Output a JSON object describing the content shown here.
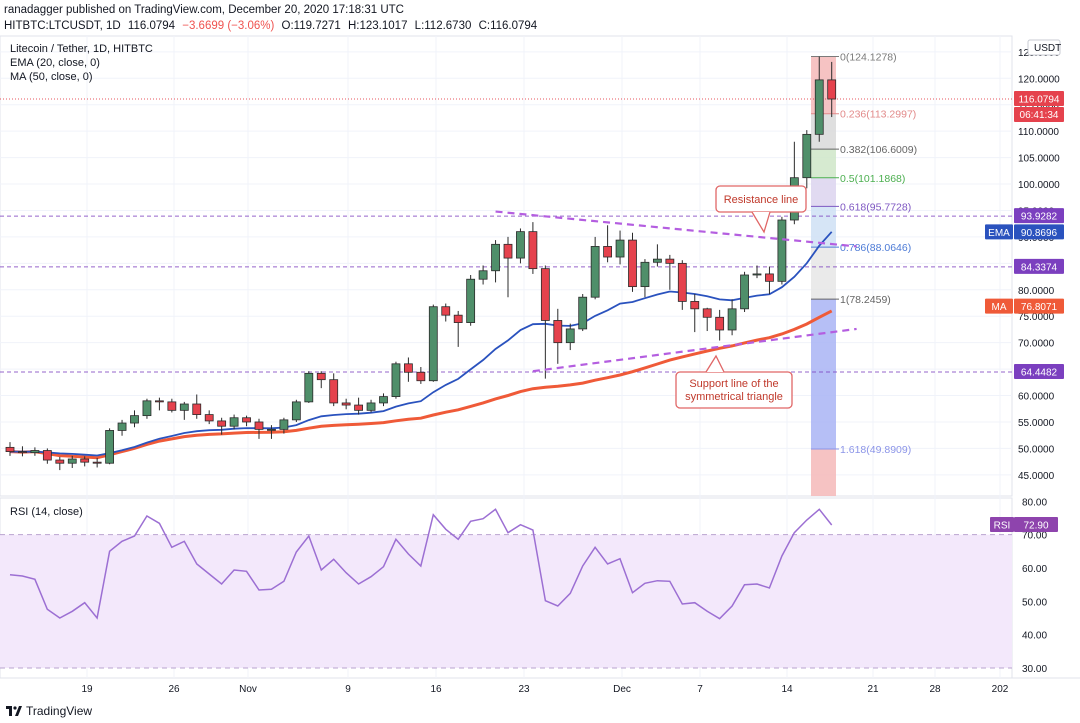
{
  "header": {
    "publisher": "ranadagger published on TradingView.com, December 20, 2020 17:18:31 UTC",
    "symbol": "HITBTC:LTCUSDT, 1D",
    "last": "116.0794",
    "change": "−3.6699 (−3.06%)",
    "open": "O:119.7271",
    "high": "H:123.1017",
    "low": "L:112.6730",
    "close": "C:116.0794"
  },
  "legend": {
    "title": "Litecoin / Tether, 1D, HITBTC",
    "ema": "EMA (20, close, 0)",
    "ma": "MA (50, close, 0)",
    "rsi": "RSI (14, close)"
  },
  "footer": {
    "brand": "TradingView"
  },
  "colors": {
    "up": "#4f8f6a",
    "down": "#e5424d",
    "ema": "#2a52be",
    "ma": "#ef5a38",
    "rsi": "#9c6fd3",
    "trend": "#b45ee0",
    "fib_high": "#f4b8b8",
    "fib_low": "#7b8ff0"
  },
  "chart_data": [
    {
      "type": "candlestick",
      "title": "Litecoin / Tether, 1D, HITBTC",
      "ylabel": "USDT",
      "ylim": [
        41,
        128
      ],
      "yticks": [
        "45.0000",
        "50.0000",
        "55.0000",
        "60.0000",
        "65.0000",
        "70.0000",
        "75.0000",
        "80.0000",
        "85.0000",
        "90.0000",
        "95.0000",
        "100.0000",
        "105.0000",
        "110.0000",
        "115.0000",
        "120.0000",
        "125.0000"
      ],
      "xticks": [
        "19",
        "26",
        "Nov",
        "9",
        "16",
        "23",
        "Dec",
        "7",
        "14",
        "21",
        "28",
        "202"
      ],
      "candles": [
        [
          50.2,
          49.4,
          51.2,
          48.6
        ],
        [
          49.4,
          49.2,
          50.4,
          48.5
        ],
        [
          49.2,
          49.6,
          50.2,
          48.6
        ],
        [
          49.6,
          47.8,
          50.0,
          47.1
        ],
        [
          47.8,
          47.2,
          48.4,
          45.9
        ],
        [
          47.2,
          48.0,
          48.6,
          46.3
        ],
        [
          48.0,
          47.4,
          48.5,
          46.6
        ],
        [
          47.4,
          47.2,
          48.2,
          46.4
        ],
        [
          47.2,
          53.4,
          53.8,
          47.0
        ],
        [
          53.4,
          54.8,
          55.4,
          52.4
        ],
        [
          54.8,
          56.2,
          57.2,
          54.0
        ],
        [
          56.2,
          59.0,
          59.4,
          55.6
        ],
        [
          59.0,
          58.8,
          59.6,
          57.2
        ],
        [
          58.8,
          57.2,
          59.4,
          56.8
        ],
        [
          57.2,
          58.4,
          58.8,
          55.4
        ],
        [
          58.4,
          56.4,
          60.2,
          55.6
        ],
        [
          56.4,
          55.2,
          57.2,
          54.6
        ],
        [
          55.2,
          54.2,
          55.8,
          52.6
        ],
        [
          54.2,
          55.8,
          56.4,
          53.6
        ],
        [
          55.8,
          55.0,
          56.2,
          54.2
        ],
        [
          55.0,
          53.6,
          55.6,
          51.8
        ],
        [
          53.6,
          53.6,
          54.4,
          51.8
        ],
        [
          53.6,
          55.4,
          55.8,
          52.8
        ],
        [
          55.4,
          58.8,
          59.2,
          55.0
        ],
        [
          58.8,
          64.2,
          64.6,
          58.6
        ],
        [
          64.2,
          63.0,
          64.6,
          61.4
        ],
        [
          63.0,
          58.6,
          64.2,
          58.0
        ],
        [
          58.6,
          58.2,
          59.4,
          57.4
        ],
        [
          58.2,
          57.2,
          59.6,
          56.4
        ],
        [
          57.2,
          58.6,
          59.2,
          56.8
        ],
        [
          58.6,
          59.8,
          60.4,
          58.0
        ],
        [
          59.8,
          66.0,
          66.4,
          59.4
        ],
        [
          66.0,
          64.4,
          67.2,
          62.6
        ],
        [
          64.4,
          62.8,
          65.4,
          62.2
        ],
        [
          62.8,
          76.8,
          77.2,
          62.6
        ],
        [
          76.8,
          75.2,
          77.4,
          74.0
        ],
        [
          75.2,
          73.8,
          76.0,
          69.2
        ],
        [
          73.8,
          82.0,
          82.8,
          73.2
        ],
        [
          82.0,
          83.6,
          84.6,
          81.0
        ],
        [
          83.6,
          88.6,
          89.4,
          81.4
        ],
        [
          88.6,
          86.0,
          90.0,
          78.6
        ],
        [
          86.0,
          91.0,
          91.6,
          85.0
        ],
        [
          91.0,
          84.0,
          92.8,
          83.0
        ],
        [
          84.0,
          74.2,
          84.6,
          63.2
        ],
        [
          74.2,
          70.0,
          76.4,
          66.0
        ],
        [
          70.0,
          72.6,
          73.6,
          68.6
        ],
        [
          72.6,
          78.6,
          79.2,
          72.2
        ],
        [
          78.6,
          88.2,
          90.0,
          78.2
        ],
        [
          88.2,
          86.2,
          92.2,
          85.2
        ],
        [
          86.2,
          89.4,
          91.2,
          84.8
        ],
        [
          89.4,
          80.6,
          90.8,
          79.6
        ],
        [
          80.6,
          85.2,
          85.8,
          78.6
        ],
        [
          85.2,
          85.8,
          88.6,
          84.4
        ],
        [
          85.8,
          85.0,
          86.6,
          80.0
        ],
        [
          85.0,
          77.8,
          85.6,
          76.2
        ],
        [
          77.8,
          76.4,
          79.2,
          72.0
        ],
        [
          76.4,
          74.8,
          76.6,
          72.2
        ],
        [
          74.8,
          72.4,
          76.2,
          70.4
        ],
        [
          72.4,
          76.4,
          78.2,
          71.4
        ],
        [
          76.4,
          82.8,
          83.4,
          75.8
        ],
        [
          82.8,
          83.0,
          84.6,
          82.2
        ],
        [
          83.0,
          81.6,
          84.4,
          79.2
        ],
        [
          81.6,
          93.2,
          93.8,
          81.0
        ],
        [
          93.2,
          101.2,
          108.0,
          92.4
        ],
        [
          101.2,
          109.4,
          110.2,
          99.2
        ],
        [
          109.4,
          119.7,
          124.1,
          108.0
        ],
        [
          119.7,
          116.08,
          123.1,
          112.67
        ]
      ],
      "overlays": {
        "ema_label": "EMA",
        "ema_value": "90.8696",
        "ma_label": "MA",
        "ma_value": "76.8071"
      },
      "price_labels": [
        {
          "value": "116.0794",
          "sub": "06:41:34",
          "price": 116.0794
        },
        {
          "value": "93.9282",
          "price": 93.9282
        },
        {
          "value": "84.3374",
          "price": 84.3374
        },
        {
          "value": "64.4482",
          "price": 64.4482
        }
      ],
      "fibonacci": [
        {
          "label": "0(124.1278)",
          "price": 124.1278
        },
        {
          "label": "0.236(113.2997)",
          "price": 113.2997
        },
        {
          "label": "0.382(106.6009)",
          "price": 106.6009
        },
        {
          "label": "0.5(101.1868)",
          "price": 101.1868
        },
        {
          "label": "0.618(95.7728)",
          "price": 95.7728
        },
        {
          "label": "0.786(88.0646)",
          "price": 88.0646
        },
        {
          "label": "1(78.2459)",
          "price": 78.2459
        },
        {
          "label": "1.618(49.8909)",
          "price": 49.8909
        }
      ],
      "annotations": [
        {
          "text": "Resistance line"
        },
        {
          "text": "Support line of the",
          "text2": "symmetrical triangle"
        }
      ]
    },
    {
      "type": "line",
      "title": "RSI (14, close)",
      "ylim": [
        27,
        81
      ],
      "yticks": [
        "30.00",
        "40.00",
        "50.00",
        "60.00",
        "70.00",
        "80.00"
      ],
      "band": [
        30,
        70
      ],
      "last_label": "RSI",
      "last_value": "72.90",
      "values": [
        58.0,
        57.6,
        56.6,
        47.6,
        45.0,
        47.0,
        49.6,
        45.0,
        65.0,
        68.0,
        69.6,
        75.6,
        73.4,
        66.2,
        68.0,
        61.2,
        58.2,
        55.2,
        59.4,
        59.0,
        53.4,
        53.6,
        56.0,
        64.8,
        69.6,
        59.4,
        62.6,
        58.6,
        55.2,
        57.4,
        60.4,
        68.6,
        64.2,
        60.6,
        76.0,
        71.6,
        68.6,
        74.0,
        74.8,
        77.6,
        70.6,
        73.0,
        71.4,
        50.2,
        48.6,
        52.4,
        60.6,
        66.2,
        61.2,
        62.8,
        52.6,
        55.4,
        56.2,
        56.0,
        49.2,
        49.6,
        47.0,
        44.8,
        48.6,
        55.0,
        55.2,
        54.0,
        63.6,
        70.6,
        74.4,
        77.6,
        72.9
      ]
    }
  ]
}
